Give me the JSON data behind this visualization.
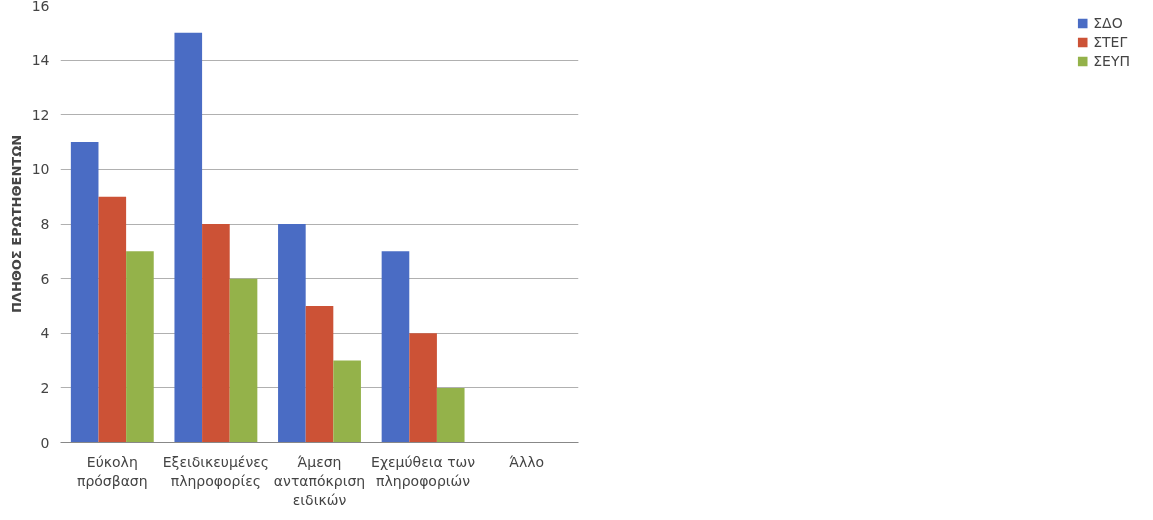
{
  "chart_data": {
    "type": "bar",
    "categories": [
      "Εύκολη\nπρόσβαση",
      "Εξειδικευμένες\nπληροφορίες",
      "Άμεση\nανταπόκριση\nειδικών",
      "Εχεμύθεια των\nπληροφοριών",
      "Άλλο"
    ],
    "series": [
      {
        "name": "ΣΔΟ",
        "color": "#4a6cc4",
        "values": [
          11,
          15,
          8,
          7,
          0
        ]
      },
      {
        "name": "ΣΤΕΓ",
        "color": "#cc5236",
        "values": [
          9,
          8,
          5,
          4,
          0
        ]
      },
      {
        "name": "ΣΕΥΠ",
        "color": "#94b24a",
        "values": [
          7,
          6,
          3,
          2,
          0
        ]
      }
    ],
    "ylabel": "ΠΛΗΘΟΣ ΕΡΩΤΗΘΕΝΤΩΝ",
    "ylim": [
      0,
      16
    ],
    "yticks": [
      0,
      2,
      4,
      6,
      8,
      10,
      12,
      14,
      16
    ],
    "grid": "y",
    "legend": "right"
  }
}
